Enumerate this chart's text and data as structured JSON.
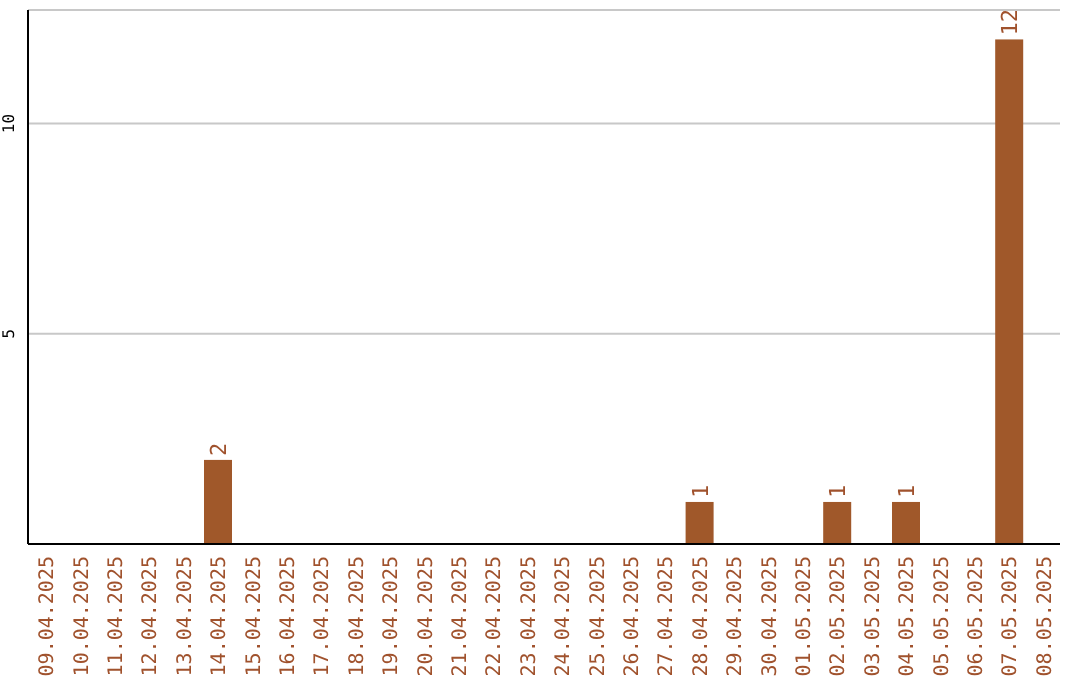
{
  "chart_data": {
    "type": "bar",
    "categories": [
      "09.04.2025",
      "10.04.2025",
      "11.04.2025",
      "12.04.2025",
      "13.04.2025",
      "14.04.2025",
      "15.04.2025",
      "16.04.2025",
      "17.04.2025",
      "18.04.2025",
      "19.04.2025",
      "20.04.2025",
      "21.04.2025",
      "22.04.2025",
      "23.04.2025",
      "24.04.2025",
      "25.04.2025",
      "26.04.2025",
      "27.04.2025",
      "28.04.2025",
      "29.04.2025",
      "30.04.2025",
      "01.05.2025",
      "02.05.2025",
      "03.05.2025",
      "04.05.2025",
      "05.05.2025",
      "06.05.2025",
      "07.05.2025",
      "08.05.2025"
    ],
    "values": [
      0,
      0,
      0,
      0,
      0,
      2,
      0,
      0,
      0,
      0,
      0,
      0,
      0,
      0,
      0,
      0,
      0,
      0,
      0,
      1,
      0,
      0,
      0,
      1,
      0,
      1,
      0,
      0,
      12,
      0
    ],
    "value_labels": [
      null,
      null,
      null,
      null,
      null,
      "2",
      null,
      null,
      null,
      null,
      null,
      null,
      null,
      null,
      null,
      null,
      null,
      null,
      null,
      "1",
      null,
      null,
      null,
      "1",
      null,
      "1",
      null,
      null,
      "12",
      null
    ],
    "color": "#a0582a",
    "ylim": [
      0,
      12.7
    ],
    "yticks": [
      5,
      10
    ],
    "grid": "y"
  }
}
